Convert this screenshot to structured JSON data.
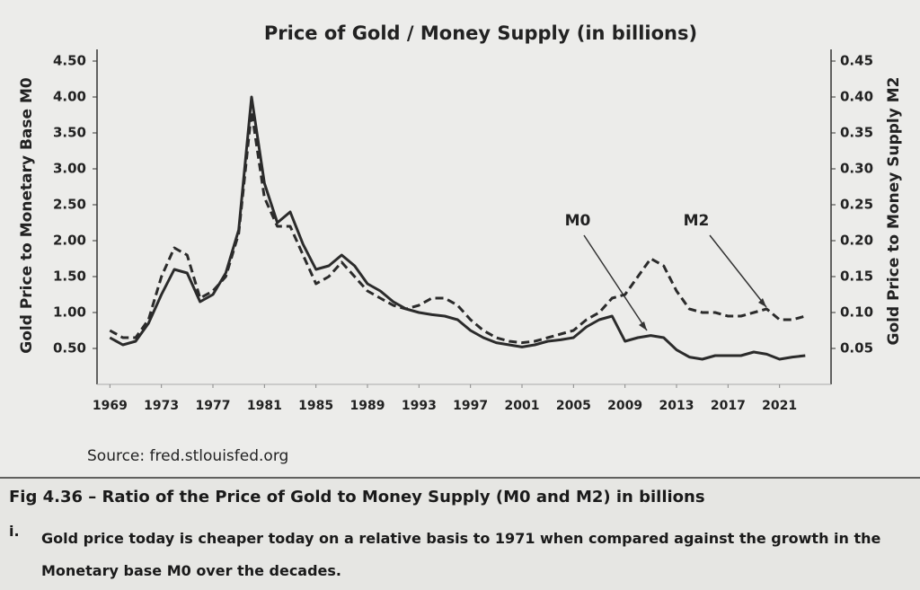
{
  "chart_data": {
    "type": "line",
    "title": "Price of Gold / Money Supply (in billions)",
    "ylabel": "Gold Price to Monetary Base M0",
    "y2label": "Gold Price to Money Supply M2",
    "x": [
      1969,
      1970,
      1971,
      1972,
      1973,
      1974,
      1975,
      1976,
      1977,
      1978,
      1979,
      1980,
      1981,
      1982,
      1983,
      1984,
      1985,
      1986,
      1987,
      1988,
      1989,
      1990,
      1991,
      1992,
      1993,
      1994,
      1995,
      1996,
      1997,
      1998,
      1999,
      2000,
      2001,
      2002,
      2003,
      2004,
      2005,
      2006,
      2007,
      2008,
      2009,
      2010,
      2011,
      2012,
      2013,
      2014,
      2015,
      2016,
      2017,
      2018,
      2019,
      2020,
      2021,
      2022,
      2023
    ],
    "xlim": [
      1968,
      2025
    ],
    "xticks": [
      1969,
      1973,
      1977,
      1981,
      1985,
      1989,
      1993,
      1997,
      2001,
      2005,
      2009,
      2013,
      2017,
      2021
    ],
    "ylim": [
      0,
      4.5
    ],
    "yticks": [
      {
        "value": 0.5,
        "label": "0.50"
      },
      {
        "value": 1,
        "label": "1.00"
      },
      {
        "value": 1.5,
        "label": "1.50"
      },
      {
        "value": 2,
        "label": "2.00"
      },
      {
        "value": 2.5,
        "label": "2.50"
      },
      {
        "value": 3,
        "label": "3.00"
      },
      {
        "value": 3.5,
        "label": "3.50"
      },
      {
        "value": 4,
        "label": "4.00"
      },
      {
        "value": 4.5,
        "label": "4.50"
      }
    ],
    "y2lim": [
      0,
      0.45
    ],
    "y2ticks": [
      {
        "value": 0.05,
        "label": "0.05"
      },
      {
        "value": 0.1,
        "label": "0.10"
      },
      {
        "value": 0.15,
        "label": "0.15"
      },
      {
        "value": 0.2,
        "label": "0.20"
      },
      {
        "value": 0.25,
        "label": "0.25"
      },
      {
        "value": 0.3,
        "label": "0.30"
      },
      {
        "value": 0.35,
        "label": "0.35"
      },
      {
        "value": 0.4,
        "label": "0.40"
      },
      {
        "value": 0.45,
        "label": "0.45"
      }
    ],
    "grid": false,
    "series": [
      {
        "name": "M0",
        "color": "#2b2b2b",
        "line_style": "solid",
        "axis": "y",
        "values": [
          0.65,
          0.55,
          0.6,
          0.85,
          1.25,
          1.6,
          1.55,
          1.15,
          1.25,
          1.55,
          2.15,
          4.0,
          2.8,
          2.25,
          2.4,
          1.95,
          1.6,
          1.65,
          1.8,
          1.65,
          1.4,
          1.3,
          1.15,
          1.05,
          1.0,
          0.97,
          0.95,
          0.9,
          0.75,
          0.65,
          0.58,
          0.55,
          0.52,
          0.55,
          0.6,
          0.62,
          0.65,
          0.8,
          0.9,
          0.95,
          0.6,
          0.65,
          0.68,
          0.65,
          0.48,
          0.38,
          0.35,
          0.4,
          0.4,
          0.4,
          0.45,
          0.42,
          0.35,
          0.38,
          0.4
        ]
      },
      {
        "name": "M2",
        "color": "#2b2b2b",
        "line_style": "dashed",
        "axis": "y2",
        "values": [
          0.075,
          0.065,
          0.065,
          0.09,
          0.15,
          0.19,
          0.18,
          0.12,
          0.13,
          0.15,
          0.21,
          0.38,
          0.26,
          0.22,
          0.22,
          0.18,
          0.14,
          0.15,
          0.17,
          0.15,
          0.13,
          0.12,
          0.11,
          0.105,
          0.11,
          0.12,
          0.12,
          0.11,
          0.09,
          0.075,
          0.065,
          0.06,
          0.058,
          0.06,
          0.065,
          0.07,
          0.075,
          0.09,
          0.1,
          0.12,
          0.125,
          0.15,
          0.175,
          0.165,
          0.13,
          0.105,
          0.1,
          0.1,
          0.095,
          0.095,
          0.1,
          0.105,
          0.09,
          0.09,
          0.095
        ]
      }
    ],
    "annotations": [
      {
        "text": "M0"
      },
      {
        "text": "M2"
      }
    ]
  },
  "source": "Source: fred.stlouisfed.org",
  "caption": "Fig 4.36 – Ratio of the Price of Gold to Money Supply (M0 and M2) in billions",
  "note": {
    "marker": "i.",
    "text": "Gold price today is cheaper today on a relative basis to 1971 when compared against the growth in the Monetary base M0 over the decades."
  }
}
